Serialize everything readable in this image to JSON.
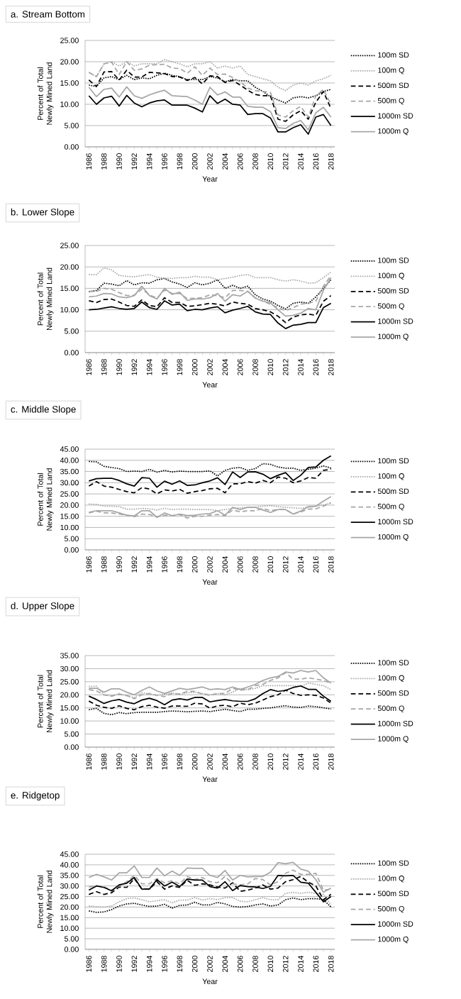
{
  "chart_data": [
    {
      "type": "line",
      "title": "a. Stream Bottom",
      "xlabel": "Year",
      "ylabel": "Percent of Total Newly Mined Land",
      "grid": "y",
      "legend": "right",
      "marker": "none",
      "categories": [
        "1986",
        null,
        "1988",
        null,
        "1990",
        null,
        "1992",
        null,
        "1994",
        null,
        "1996",
        null,
        "1998",
        null,
        "2000",
        null,
        "2002",
        null,
        "2004",
        null,
        "2006",
        null,
        "2008",
        null,
        "2010",
        null,
        "2012",
        null,
        "2014",
        null,
        "2016",
        null,
        "2018"
      ],
      "ylim": [
        0,
        25
      ],
      "yticks": [
        {
          "value": 0,
          "label": "0.00"
        },
        {
          "value": 5,
          "label": "5.00"
        },
        {
          "value": 10,
          "label": "10.00"
        },
        {
          "value": 15,
          "label": "15.00"
        },
        {
          "value": 20,
          "label": "20.00"
        },
        {
          "value": 25,
          "label": "25.00"
        }
      ],
      "series": [
        {
          "name": "100m SD",
          "color": "#000000",
          "line_style": "dotted",
          "values": [
            14.5,
            14.2,
            16.2,
            16.5,
            15.8,
            16.8,
            15.8,
            16.2,
            16.0,
            16.8,
            17.3,
            16.8,
            16.5,
            15.8,
            15.8,
            15.8,
            16.5,
            16.2,
            15.3,
            15.8,
            15.5,
            15.5,
            14.0,
            13.0,
            11.8,
            11.0,
            10.3,
            11.5,
            11.8,
            11.5,
            12.0,
            13.0,
            13.5
          ]
        },
        {
          "name": "100m Q",
          "color": "#a6a6a6",
          "line_style": "dotted",
          "values": [
            17.5,
            16.5,
            19.5,
            20.0,
            19.0,
            20.0,
            19.0,
            19.5,
            19.5,
            19.5,
            20.5,
            20.0,
            19.5,
            18.8,
            19.5,
            19.5,
            20.0,
            18.5,
            19.0,
            18.5,
            19.0,
            17.0,
            16.5,
            16.0,
            15.5,
            14.0,
            13.2,
            14.5,
            15.0,
            14.5,
            15.5,
            16.0,
            16.8
          ]
        },
        {
          "name": "500m SD",
          "color": "#000000",
          "line_style": "dashed",
          "values": [
            15.7,
            14.2,
            17.6,
            17.7,
            15.7,
            18.0,
            16.4,
            16.4,
            17.5,
            17.4,
            17.2,
            16.5,
            16.4,
            15.6,
            16.3,
            14.8,
            16.7,
            16.5,
            15.1,
            15.6,
            14.5,
            13.3,
            12.3,
            12.0,
            12.0,
            6.5,
            6.0,
            7.5,
            8.5,
            6.5,
            10.5,
            13.0,
            9.0
          ]
        },
        {
          "name": "500m Q",
          "color": "#a6a6a6",
          "line_style": "dashed",
          "values": [
            17.5,
            16.5,
            19.5,
            19.9,
            17.0,
            20.0,
            18.0,
            18.3,
            19.2,
            19.3,
            19.4,
            18.5,
            18.4,
            17.3,
            18.8,
            16.8,
            18.5,
            17.0,
            17.1,
            16.3,
            15.3,
            13.8,
            13.2,
            13.0,
            12.8,
            7.5,
            7.0,
            8.5,
            9.5,
            7.0,
            12.0,
            13.5,
            10.0
          ]
        },
        {
          "name": "1000m SD",
          "color": "#000000",
          "line_style": "solid",
          "values": [
            12.0,
            10.0,
            11.5,
            11.9,
            9.6,
            12.1,
            10.3,
            9.4,
            10.3,
            10.8,
            11.0,
            9.8,
            9.8,
            9.8,
            9.1,
            8.2,
            12.0,
            10.2,
            11.2,
            10.0,
            9.8,
            7.6,
            7.8,
            7.8,
            6.8,
            3.5,
            3.5,
            4.5,
            5.2,
            3.0,
            7.0,
            7.6,
            5.0
          ]
        },
        {
          "name": "1000m Q",
          "color": "#a6a6a6",
          "line_style": "solid",
          "values": [
            14.0,
            11.8,
            13.5,
            13.8,
            11.7,
            14.1,
            12.0,
            11.4,
            12.2,
            12.8,
            13.3,
            12.0,
            11.9,
            11.8,
            11.0,
            10.0,
            14.0,
            12.2,
            12.9,
            11.7,
            11.7,
            9.5,
            9.3,
            9.3,
            8.3,
            4.5,
            4.3,
            5.5,
            6.2,
            4.0,
            8.0,
            9.3,
            7.0
          ]
        }
      ]
    },
    {
      "type": "line",
      "title": "b. Lower Slope",
      "xlabel": "Year",
      "ylabel": "Percent of Total Newly Mined Land",
      "grid": "y",
      "legend": "right",
      "marker": "none",
      "categories": [
        "1986",
        null,
        "1988",
        null,
        "1990",
        null,
        "1992",
        null,
        "1994",
        null,
        "1996",
        null,
        "1998",
        null,
        "2000",
        null,
        "2002",
        null,
        "2004",
        null,
        "2006",
        null,
        "2008",
        null,
        "2010",
        null,
        "2012",
        null,
        "2014",
        null,
        "2016",
        null,
        "2018"
      ],
      "ylim": [
        0,
        25
      ],
      "yticks": [
        {
          "value": 0,
          "label": "0.00"
        },
        {
          "value": 5,
          "label": "5.00"
        },
        {
          "value": 10,
          "label": "10.00"
        },
        {
          "value": 15,
          "label": "15.00"
        },
        {
          "value": 20,
          "label": "20.00"
        },
        {
          "value": 25,
          "label": "25.00"
        }
      ],
      "series": [
        {
          "name": "100m SD",
          "color": "#000000",
          "line_style": "dotted",
          "values": [
            14.2,
            14.5,
            16.2,
            16.0,
            15.6,
            16.8,
            15.8,
            16.3,
            16.2,
            17.0,
            17.3,
            16.5,
            16.0,
            15.2,
            16.3,
            15.8,
            16.2,
            17.0,
            15.0,
            15.7,
            15.0,
            15.5,
            13.5,
            12.5,
            12.0,
            11.0,
            10.2,
            11.5,
            11.8,
            11.5,
            13.0,
            15.0,
            17.0
          ]
        },
        {
          "name": "100m Q",
          "color": "#a6a6a6",
          "line_style": "dotted",
          "values": [
            18.2,
            18.2,
            19.8,
            19.3,
            18.0,
            17.8,
            17.7,
            18.0,
            18.2,
            17.6,
            17.4,
            17.3,
            17.5,
            17.5,
            17.8,
            17.6,
            17.6,
            17.0,
            17.3,
            17.6,
            18.0,
            18.2,
            17.5,
            17.5,
            17.5,
            17.0,
            16.7,
            17.0,
            16.7,
            16.2,
            16.3,
            17.5,
            18.8
          ]
        },
        {
          "name": "500m SD",
          "color": "#000000",
          "line_style": "dashed",
          "values": [
            12.1,
            11.7,
            12.4,
            12.5,
            11.8,
            11.0,
            10.8,
            12.3,
            11.0,
            10.7,
            12.8,
            11.7,
            11.7,
            10.8,
            10.9,
            11.2,
            11.5,
            11.3,
            10.9,
            11.8,
            11.5,
            11.3,
            10.3,
            10.0,
            9.5,
            8.5,
            7.0,
            8.3,
            8.8,
            9.0,
            8.7,
            12.0,
            13.3
          ]
        },
        {
          "name": "500m Q",
          "color": "#a6a6a6",
          "line_style": "dashed",
          "values": [
            14.3,
            14.3,
            15.0,
            14.8,
            14.0,
            13.3,
            13.4,
            14.8,
            13.5,
            12.7,
            14.6,
            13.8,
            13.8,
            12.6,
            12.7,
            12.8,
            13.5,
            13.3,
            12.8,
            14.5,
            14.5,
            14.3,
            12.8,
            12.0,
            11.3,
            10.5,
            9.8,
            10.5,
            11.3,
            11.5,
            12.0,
            15.5,
            18.0
          ]
        },
        {
          "name": "1000m SD",
          "color": "#000000",
          "line_style": "solid",
          "values": [
            10.0,
            10.1,
            10.4,
            10.7,
            10.3,
            10.1,
            10.3,
            11.8,
            10.5,
            10.1,
            12.1,
            11.1,
            11.3,
            9.8,
            10.1,
            10.0,
            10.4,
            10.7,
            9.3,
            9.9,
            10.3,
            10.8,
            9.5,
            9.0,
            8.9,
            6.9,
            5.6,
            6.4,
            6.6,
            7.0,
            7.0,
            10.5,
            11.5
          ]
        },
        {
          "name": "1000m Q",
          "color": "#a6a6a6",
          "line_style": "solid",
          "values": [
            13.0,
            13.2,
            13.8,
            13.7,
            13.0,
            12.8,
            13.3,
            15.5,
            13.3,
            12.5,
            15.0,
            13.6,
            14.1,
            12.2,
            12.5,
            12.5,
            12.8,
            13.8,
            12.0,
            13.5,
            13.2,
            14.3,
            12.7,
            12.0,
            11.6,
            10.0,
            8.5,
            8.7,
            9.2,
            10.3,
            10.0,
            14.5,
            17.5
          ]
        }
      ]
    },
    {
      "type": "line",
      "title": "c. Middle Slope",
      "xlabel": "Year",
      "ylabel": "Percent of Total Newly Mined Land",
      "grid": "y",
      "legend": "right",
      "marker": "none",
      "categories": [
        "1986",
        null,
        "1988",
        null,
        "1990",
        null,
        "1992",
        null,
        "1994",
        null,
        "1996",
        null,
        "1998",
        null,
        "2000",
        null,
        "2002",
        null,
        "2004",
        null,
        "2006",
        null,
        "2008",
        null,
        "2010",
        null,
        "2012",
        null,
        "2014",
        null,
        "2016",
        null,
        "2018"
      ],
      "ylim": [
        0,
        45
      ],
      "yticks": [
        {
          "value": 0,
          "label": "0.00"
        },
        {
          "value": 5,
          "label": "5.00"
        },
        {
          "value": 10,
          "label": "10.00"
        },
        {
          "value": 15,
          "label": "15.00"
        },
        {
          "value": 20,
          "label": "20.00"
        },
        {
          "value": 25,
          "label": "25.00"
        },
        {
          "value": 30,
          "label": "30.00"
        },
        {
          "value": 35,
          "label": "35.00"
        },
        {
          "value": 40,
          "label": "40.00"
        },
        {
          "value": 45,
          "label": "45.00"
        }
      ],
      "series": [
        {
          "name": "100m SD",
          "color": "#000000",
          "line_style": "dotted",
          "values": [
            39.5,
            39.3,
            37.3,
            36.8,
            36.3,
            35.0,
            35.2,
            35.0,
            36.0,
            34.7,
            35.5,
            34.8,
            35.2,
            35.0,
            35.0,
            35.0,
            35.3,
            33.0,
            35.5,
            36.5,
            36.8,
            35.5,
            36.3,
            38.5,
            38.2,
            37.0,
            36.5,
            36.5,
            35.5,
            36.0,
            36.5,
            37.5,
            36.5
          ]
        },
        {
          "name": "100m Q",
          "color": "#a6a6a6",
          "line_style": "dotted",
          "values": [
            20.5,
            20.3,
            19.5,
            19.5,
            19.3,
            18.2,
            18.2,
            18.5,
            18.3,
            17.8,
            18.6,
            18.0,
            18.2,
            18.2,
            18.0,
            18.0,
            18.0,
            17.5,
            18.0,
            18.5,
            18.8,
            19.0,
            19.0,
            19.5,
            19.8,
            19.3,
            19.0,
            18.8,
            18.5,
            19.0,
            19.5,
            20.0,
            21.0
          ]
        },
        {
          "name": "500m SD",
          "color": "#000000",
          "line_style": "dashed",
          "values": [
            28.5,
            30.5,
            28.5,
            28.0,
            27.0,
            26.0,
            25.5,
            27.8,
            27.2,
            25.0,
            26.8,
            26.3,
            27.0,
            25.3,
            26.0,
            26.5,
            27.3,
            27.5,
            25.5,
            29.5,
            29.5,
            30.5,
            29.8,
            31.0,
            30.0,
            32.5,
            32.0,
            30.0,
            30.8,
            32.3,
            32.0,
            35.5,
            36.0
          ]
        },
        {
          "name": "500m Q",
          "color": "#a6a6a6",
          "line_style": "dashed",
          "values": [
            16.5,
            17.3,
            16.5,
            16.5,
            16.0,
            15.5,
            14.8,
            16.0,
            15.8,
            14.8,
            15.5,
            15.3,
            15.8,
            14.2,
            15.0,
            15.0,
            15.5,
            15.8,
            15.2,
            17.8,
            17.0,
            17.5,
            17.5,
            18.5,
            17.5,
            18.0,
            18.0,
            16.0,
            17.0,
            18.2,
            18.3,
            19.5,
            21.0
          ]
        },
        {
          "name": "1000m SD",
          "color": "#000000",
          "line_style": "solid",
          "values": [
            30.8,
            31.8,
            32.0,
            32.0,
            31.0,
            29.5,
            28.5,
            32.3,
            32.0,
            28.0,
            30.7,
            29.3,
            30.8,
            28.8,
            29.0,
            30.0,
            30.8,
            32.2,
            29.2,
            34.8,
            32.3,
            34.8,
            34.9,
            33.8,
            31.8,
            33.3,
            34.5,
            31.0,
            33.3,
            36.8,
            37.0,
            40.0,
            42.0
          ]
        },
        {
          "name": "1000m Q",
          "color": "#a6a6a6",
          "line_style": "solid",
          "values": [
            16.8,
            17.5,
            17.5,
            17.5,
            16.5,
            15.5,
            15.2,
            17.5,
            17.5,
            14.5,
            16.5,
            15.2,
            16.0,
            15.3,
            15.5,
            16.0,
            16.2,
            17.5,
            15.5,
            19.0,
            18.0,
            19.0,
            19.0,
            17.8,
            16.7,
            18.0,
            18.0,
            16.0,
            17.3,
            19.3,
            19.5,
            21.8,
            23.8
          ]
        }
      ]
    },
    {
      "type": "line",
      "title": "d. Upper Slope",
      "xlabel": "Year",
      "ylabel": "Percent of Total Newly Mined Land",
      "grid": "y",
      "legend": "right",
      "marker": "none",
      "categories": [
        "1986",
        null,
        "1988",
        null,
        "1990",
        null,
        "1992",
        null,
        "1994",
        null,
        "1996",
        null,
        "1998",
        null,
        "2000",
        null,
        "2002",
        null,
        "2004",
        null,
        "2006",
        null,
        "2008",
        null,
        "2010",
        null,
        "2012",
        null,
        "2014",
        null,
        "2016",
        null,
        "2018"
      ],
      "ylim": [
        0,
        35
      ],
      "yticks": [
        {
          "value": 0,
          "label": "0.00"
        },
        {
          "value": 5,
          "label": "5.00"
        },
        {
          "value": 10,
          "label": "10.00"
        },
        {
          "value": 15,
          "label": "15.00"
        },
        {
          "value": 20,
          "label": "20.00"
        },
        {
          "value": 25,
          "label": "25.00"
        },
        {
          "value": 30,
          "label": "30.00"
        },
        {
          "value": 35,
          "label": "35.00"
        }
      ],
      "series": [
        {
          "name": "100m SD",
          "color": "#000000",
          "line_style": "dotted",
          "values": [
            14.3,
            14.8,
            12.9,
            12.4,
            13.2,
            12.8,
            13.2,
            13.3,
            13.3,
            13.3,
            13.6,
            13.8,
            13.7,
            13.5,
            13.7,
            13.8,
            13.6,
            14.0,
            14.5,
            14.0,
            13.6,
            14.5,
            14.5,
            14.8,
            15.0,
            15.5,
            15.8,
            15.3,
            15.2,
            15.7,
            15.5,
            15.0,
            14.6
          ]
        },
        {
          "name": "100m Q",
          "color": "#a6a6a6",
          "line_style": "dotted",
          "values": [
            23.2,
            23.3,
            20.0,
            19.5,
            20.5,
            19.5,
            19.0,
            20.8,
            20.3,
            19.8,
            20.2,
            20.7,
            20.2,
            20.8,
            21.0,
            20.5,
            20.0,
            20.5,
            20.0,
            21.0,
            22.5,
            22.0,
            22.5,
            23.5,
            23.5,
            23.5,
            23.5,
            23.5,
            23.2,
            24.5,
            24.0,
            23.5,
            22.0
          ]
        },
        {
          "name": "500m SD",
          "color": "#000000",
          "line_style": "dashed",
          "values": [
            17.6,
            16.0,
            15.2,
            14.8,
            15.8,
            14.8,
            14.3,
            15.5,
            16.0,
            15.3,
            14.9,
            15.7,
            15.7,
            15.6,
            16.8,
            16.5,
            14.9,
            15.8,
            16.0,
            15.4,
            16.8,
            16.2,
            16.8,
            18.0,
            19.3,
            20.0,
            21.8,
            20.5,
            19.8,
            20.0,
            19.8,
            18.8,
            16.8
          ]
        },
        {
          "name": "500m Q",
          "color": "#a6a6a6",
          "line_style": "dashed",
          "values": [
            22.0,
            21.5,
            20.0,
            19.5,
            20.2,
            19.8,
            18.5,
            20.0,
            20.5,
            19.8,
            19.3,
            20.5,
            20.3,
            21.3,
            21.3,
            20.3,
            19.8,
            20.5,
            20.5,
            22.5,
            21.8,
            22.0,
            23.5,
            24.0,
            25.5,
            26.5,
            28.5,
            26.0,
            26.0,
            26.5,
            26.0,
            25.5,
            24.5
          ]
        },
        {
          "name": "1000m SD",
          "color": "#000000",
          "line_style": "solid",
          "values": [
            19.5,
            18.2,
            16.7,
            17.7,
            18.2,
            17.2,
            16.6,
            18.0,
            18.7,
            17.8,
            16.2,
            18.0,
            18.5,
            18.0,
            19.0,
            19.0,
            17.3,
            17.8,
            18.2,
            17.7,
            17.5,
            17.5,
            18.5,
            20.5,
            22.0,
            21.3,
            21.7,
            22.8,
            23.4,
            22.1,
            22.1,
            19.5,
            17.5
          ]
        },
        {
          "name": "1000m Q",
          "color": "#a6a6a6",
          "line_style": "solid",
          "values": [
            22.5,
            22.5,
            21.0,
            22.3,
            22.3,
            21.0,
            20.0,
            21.7,
            23.0,
            21.5,
            20.5,
            21.5,
            22.5,
            22.0,
            22.5,
            23.0,
            22.0,
            22.3,
            22.0,
            23.0,
            22.0,
            23.0,
            24.0,
            25.5,
            26.5,
            27.0,
            28.7,
            28.3,
            29.3,
            28.7,
            29.3,
            26.5,
            24.5
          ]
        }
      ]
    },
    {
      "type": "line",
      "title": "e. Ridgetop",
      "xlabel": "Year",
      "ylabel": "Percent of Total Newly Mined Land",
      "grid": "y",
      "legend": "right",
      "marker": "none",
      "categories": [
        "1986",
        null,
        "1988",
        null,
        "1990",
        null,
        "1992",
        null,
        "1994",
        null,
        "1996",
        null,
        "1998",
        null,
        "2000",
        null,
        "2002",
        null,
        "2004",
        null,
        "2006",
        null,
        "2008",
        null,
        "2010",
        null,
        "2012",
        null,
        "2014",
        null,
        "2016",
        null,
        "2018"
      ],
      "ylim": [
        0,
        45
      ],
      "yticks": [
        {
          "value": 0,
          "label": "0.00"
        },
        {
          "value": 5,
          "label": "5.00"
        },
        {
          "value": 10,
          "label": "10.00"
        },
        {
          "value": 15,
          "label": "15.00"
        },
        {
          "value": 20,
          "label": "20.00"
        },
        {
          "value": 25,
          "label": "25.00"
        },
        {
          "value": 30,
          "label": "30.00"
        },
        {
          "value": 35,
          "label": "35.00"
        },
        {
          "value": 40,
          "label": "40.00"
        },
        {
          "value": 45,
          "label": "45.00"
        }
      ],
      "series": [
        {
          "name": "100m SD",
          "color": "#000000",
          "line_style": "dotted",
          "values": [
            18.2,
            17.5,
            17.7,
            18.8,
            20.5,
            21.5,
            21.8,
            21.0,
            20.3,
            20.5,
            21.3,
            19.5,
            20.8,
            21.0,
            22.3,
            21.0,
            21.0,
            22.2,
            21.5,
            20.3,
            20.0,
            20.3,
            21.0,
            21.5,
            20.5,
            21.0,
            23.5,
            24.3,
            23.5,
            24.0,
            24.0,
            23.5,
            20.0
          ]
        },
        {
          "name": "100m Q",
          "color": "#a6a6a6",
          "line_style": "dotted",
          "values": [
            20.5,
            20.2,
            20.0,
            20.5,
            22.5,
            24.0,
            24.3,
            23.5,
            22.5,
            23.0,
            23.5,
            22.0,
            23.3,
            23.3,
            24.5,
            23.3,
            24.0,
            23.5,
            24.5,
            24.5,
            22.8,
            22.5,
            23.5,
            24.5,
            23.5,
            23.5,
            26.5,
            27.0,
            26.5,
            27.0,
            26.5,
            26.0,
            21.0
          ]
        },
        {
          "name": "500m SD",
          "color": "#000000",
          "line_style": "dashed",
          "values": [
            26.0,
            27.3,
            26.0,
            26.8,
            29.5,
            29.3,
            33.5,
            28.5,
            28.5,
            32.0,
            28.5,
            30.0,
            29.3,
            32.7,
            30.3,
            31.0,
            30.5,
            29.5,
            29.0,
            31.5,
            27.5,
            28.0,
            29.0,
            30.5,
            28.5,
            29.0,
            32.0,
            33.0,
            34.5,
            31.8,
            30.0,
            23.5,
            26.0
          ]
        },
        {
          "name": "500m Q",
          "color": "#a6a6a6",
          "line_style": "dashed",
          "values": [
            29.5,
            30.0,
            29.5,
            28.0,
            30.0,
            32.0,
            35.0,
            31.0,
            31.0,
            33.5,
            31.5,
            32.5,
            31.0,
            34.5,
            33.0,
            34.0,
            32.0,
            31.5,
            34.5,
            31.0,
            30.5,
            31.0,
            33.5,
            33.0,
            30.5,
            32.0,
            36.0,
            37.5,
            35.5,
            35.5,
            36.0,
            28.0,
            28.5
          ]
        },
        {
          "name": "1000m SD",
          "color": "#000000",
          "line_style": "solid",
          "values": [
            28.0,
            30.0,
            29.3,
            27.7,
            30.5,
            31.3,
            34.0,
            28.5,
            28.5,
            33.0,
            30.0,
            31.8,
            29.7,
            33.3,
            32.8,
            32.8,
            29.7,
            29.0,
            32.0,
            27.8,
            30.2,
            29.7,
            29.5,
            28.8,
            29.8,
            35.0,
            34.8,
            35.0,
            31.8,
            31.3,
            27.0,
            22.5,
            25.0
          ]
        },
        {
          "name": "1000m Q",
          "color": "#a6a6a6",
          "line_style": "solid",
          "values": [
            34.0,
            35.5,
            34.3,
            32.8,
            36.2,
            36.2,
            39.5,
            34.0,
            34.0,
            38.5,
            34.8,
            37.0,
            35.0,
            38.5,
            38.3,
            38.3,
            35.0,
            34.0,
            37.3,
            32.8,
            35.0,
            34.3,
            34.5,
            34.5,
            36.5,
            41.0,
            40.5,
            41.2,
            38.0,
            37.0,
            33.0,
            27.0,
            29.0
          ]
        }
      ]
    }
  ]
}
